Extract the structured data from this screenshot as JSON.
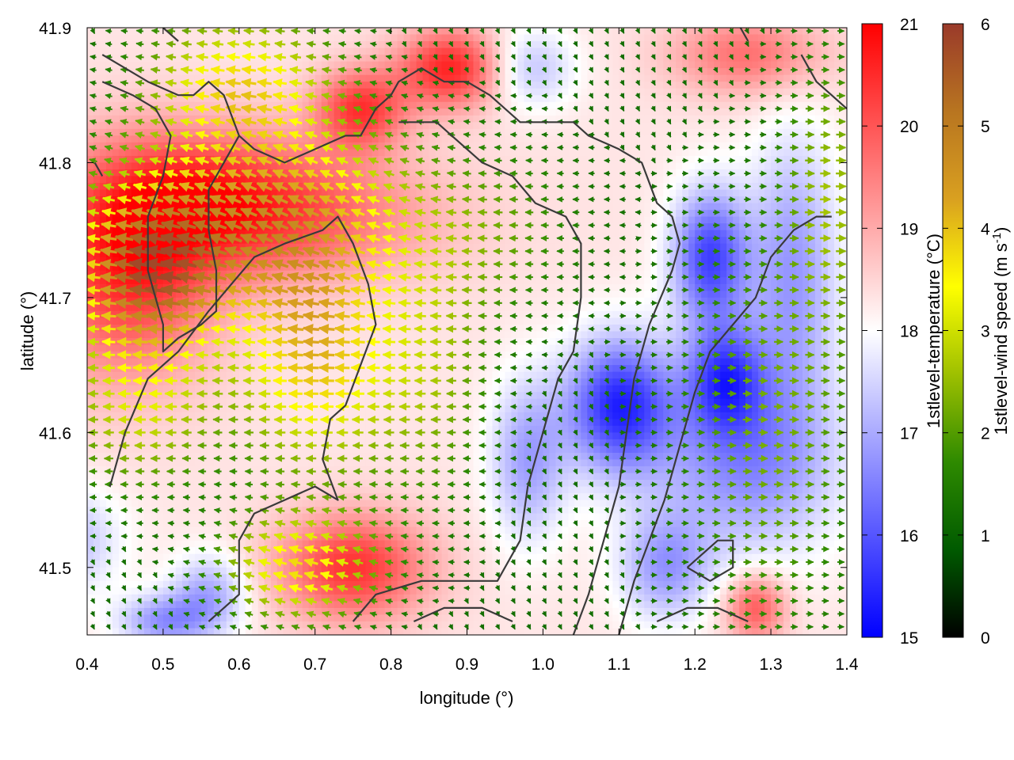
{
  "chart_data": {
    "type": "heatmap",
    "xlabel": "longitude (°)",
    "ylabel": "latitude (°)",
    "xlim": [
      0.4,
      1.4
    ],
    "ylim": [
      41.45,
      41.9
    ],
    "x_ticks": [
      "0.4",
      "0.5",
      "0.6",
      "0.7",
      "0.8",
      "0.9",
      "1.0",
      "1.1",
      "1.2",
      "1.3",
      "1.4"
    ],
    "y_ticks": [
      "41.5",
      "41.6",
      "41.7",
      "41.8",
      "41.9"
    ],
    "grid": false,
    "colorbars": [
      {
        "label": "1stlevel-temperature (°C)",
        "range": [
          15,
          21
        ],
        "ticks": [
          "15",
          "16",
          "17",
          "18",
          "19",
          "20",
          "21"
        ],
        "colors": [
          "#0000ff",
          "#ffffff",
          "#ff0000"
        ]
      },
      {
        "label_main": "1stlevel-wind speed (m s",
        "label_sup": "-1",
        "label_end": ")",
        "range": [
          0,
          6
        ],
        "ticks": [
          "0",
          "1",
          "2",
          "3",
          "4",
          "5",
          "6"
        ],
        "colors": [
          "#000000",
          "#005a00",
          "#2e8a00",
          "#9ec000",
          "#ffff00",
          "#d9a020",
          "#b87520",
          "#9a3a2a"
        ]
      }
    ],
    "temperature_field": {
      "description_values": "approximate °C blobs over domain",
      "background": 18.3,
      "blobs": [
        {
          "lon": 0.45,
          "lat": 41.72,
          "rlon": 0.12,
          "rlat": 0.08,
          "value": 20.4
        },
        {
          "lon": 0.55,
          "lat": 41.78,
          "rlon": 0.15,
          "rlat": 0.05,
          "value": 19.6
        },
        {
          "lon": 0.66,
          "lat": 41.76,
          "rlon": 0.2,
          "rlat": 0.05,
          "value": 19.8
        },
        {
          "lon": 0.88,
          "lat": 41.87,
          "rlon": 0.07,
          "rlat": 0.03,
          "value": 20.6
        },
        {
          "lon": 0.76,
          "lat": 41.84,
          "rlon": 0.06,
          "rlat": 0.03,
          "value": 20.3
        },
        {
          "lon": 0.75,
          "lat": 41.5,
          "rlon": 0.1,
          "rlat": 0.04,
          "value": 20.4
        },
        {
          "lon": 1.27,
          "lat": 41.88,
          "rlon": 0.1,
          "rlat": 0.03,
          "value": 19.7
        },
        {
          "lon": 1.28,
          "lat": 41.47,
          "rlon": 0.04,
          "rlat": 0.025,
          "value": 20.0
        },
        {
          "lon": 1.1,
          "lat": 41.62,
          "rlon": 0.07,
          "rlat": 0.05,
          "value": 15.5
        },
        {
          "lon": 1.22,
          "lat": 41.73,
          "rlon": 0.05,
          "rlat": 0.05,
          "value": 15.8
        },
        {
          "lon": 1.24,
          "lat": 41.64,
          "rlon": 0.05,
          "rlat": 0.04,
          "value": 16.2
        },
        {
          "lon": 1.27,
          "lat": 41.58,
          "rlon": 0.12,
          "rlat": 0.07,
          "value": 16.6
        },
        {
          "lon": 1.33,
          "lat": 41.72,
          "rlon": 0.06,
          "rlat": 0.1,
          "value": 16.8
        },
        {
          "lon": 0.98,
          "lat": 41.58,
          "rlon": 0.05,
          "rlat": 0.06,
          "value": 16.9
        },
        {
          "lon": 1.16,
          "lat": 41.5,
          "rlon": 0.06,
          "rlat": 0.04,
          "value": 16.9
        },
        {
          "lon": 0.56,
          "lat": 41.48,
          "rlon": 0.05,
          "rlat": 0.03,
          "value": 17.0
        },
        {
          "lon": 0.5,
          "lat": 41.46,
          "rlon": 0.06,
          "rlat": 0.02,
          "value": 16.8
        },
        {
          "lon": 0.98,
          "lat": 41.87,
          "rlon": 0.06,
          "rlat": 0.03,
          "value": 17.2
        },
        {
          "lon": 0.36,
          "lat": 41.52,
          "rlon": 0.08,
          "rlat": 0.04,
          "value": 17.1
        }
      ]
    },
    "wind_field": {
      "description_values": "approximate speed m/s and direction blobs",
      "blobs": [
        {
          "lon": 0.48,
          "lat": 41.72,
          "rlon": 0.1,
          "rlat": 0.06,
          "speed": 5.3,
          "u": -1,
          "v": 0.05
        },
        {
          "lon": 0.65,
          "lat": 41.76,
          "rlon": 0.18,
          "rlat": 0.07,
          "speed": 4.6,
          "u": -1,
          "v": 0.5
        },
        {
          "lon": 0.6,
          "lat": 41.86,
          "rlon": 0.12,
          "rlat": 0.05,
          "speed": 3.8,
          "u": -1,
          "v": 0.1
        },
        {
          "lon": 0.7,
          "lat": 41.65,
          "rlon": 0.1,
          "rlat": 0.08,
          "speed": 4.1,
          "u": -1,
          "v": 0.0
        },
        {
          "lon": 0.68,
          "lat": 41.5,
          "rlon": 0.1,
          "rlat": 0.04,
          "speed": 4.0,
          "u": -1,
          "v": 0.3
        },
        {
          "lon": 0.47,
          "lat": 41.62,
          "rlon": 0.1,
          "rlat": 0.06,
          "speed": 3.2,
          "u": -1,
          "v": 0.0
        },
        {
          "lon": 0.85,
          "lat": 41.65,
          "rlon": 0.08,
          "rlat": 0.1,
          "speed": 2.6,
          "u": -1,
          "v": 0.0
        },
        {
          "lon": 0.95,
          "lat": 41.75,
          "rlon": 0.1,
          "rlat": 0.06,
          "speed": 2.0,
          "u": -1,
          "v": 0.0
        },
        {
          "lon": 1.3,
          "lat": 41.6,
          "rlon": 0.12,
          "rlat": 0.15,
          "speed": 2.4,
          "u": 1,
          "v": 0.0
        },
        {
          "lon": 1.38,
          "lat": 41.78,
          "rlon": 0.06,
          "rlat": 0.1,
          "speed": 2.6,
          "u": 1,
          "v": 0.0
        }
      ],
      "background_speed": 1.2
    },
    "contours": [
      [
        [
          0.42,
          41.88
        ],
        [
          0.45,
          41.87
        ],
        [
          0.48,
          41.86
        ],
        [
          0.52,
          41.85
        ],
        [
          0.54,
          41.85
        ],
        [
          0.56,
          41.86
        ],
        [
          0.58,
          41.85
        ],
        [
          0.6,
          41.82
        ],
        [
          0.62,
          41.81
        ],
        [
          0.66,
          41.8
        ],
        [
          0.7,
          41.81
        ],
        [
          0.74,
          41.82
        ],
        [
          0.76,
          41.82
        ],
        [
          0.78,
          41.84
        ],
        [
          0.8,
          41.85
        ],
        [
          0.81,
          41.86
        ],
        [
          0.84,
          41.87
        ],
        [
          0.87,
          41.86
        ],
        [
          0.9,
          41.86
        ],
        [
          0.93,
          41.85
        ],
        [
          0.97,
          41.83
        ],
        [
          1.0,
          41.83
        ],
        [
          1.04,
          41.83
        ],
        [
          1.06,
          41.82
        ],
        [
          1.1,
          41.81
        ],
        [
          1.13,
          41.8
        ],
        [
          1.15,
          41.77
        ],
        [
          1.17,
          41.76
        ],
        [
          1.18,
          41.74
        ],
        [
          1.17,
          41.72
        ],
        [
          1.14,
          41.68
        ],
        [
          1.12,
          41.64
        ],
        [
          1.11,
          41.6
        ],
        [
          1.1,
          41.56
        ],
        [
          1.08,
          41.52
        ],
        [
          1.06,
          41.48
        ],
        [
          1.04,
          41.45
        ]
      ],
      [
        [
          0.6,
          41.82
        ],
        [
          0.58,
          41.8
        ],
        [
          0.56,
          41.78
        ],
        [
          0.56,
          41.75
        ],
        [
          0.57,
          41.72
        ],
        [
          0.57,
          41.69
        ],
        [
          0.55,
          41.68
        ],
        [
          0.52,
          41.67
        ],
        [
          0.5,
          41.66
        ],
        [
          0.5,
          41.68
        ],
        [
          0.49,
          41.7
        ],
        [
          0.48,
          41.72
        ],
        [
          0.48,
          41.76
        ],
        [
          0.5,
          41.79
        ],
        [
          0.51,
          41.82
        ],
        [
          0.49,
          41.84
        ],
        [
          0.46,
          41.85
        ],
        [
          0.42,
          41.86
        ]
      ],
      [
        [
          0.41,
          41.8
        ],
        [
          0.42,
          41.79
        ]
      ],
      [
        [
          0.43,
          41.56
        ],
        [
          0.45,
          41.6
        ],
        [
          0.48,
          41.64
        ],
        [
          0.52,
          41.66
        ],
        [
          0.56,
          41.69
        ],
        [
          0.59,
          41.71
        ],
        [
          0.62,
          41.73
        ],
        [
          0.66,
          41.74
        ],
        [
          0.71,
          41.75
        ],
        [
          0.73,
          41.76
        ],
        [
          0.75,
          41.74
        ],
        [
          0.77,
          41.71
        ],
        [
          0.78,
          41.68
        ],
        [
          0.76,
          41.65
        ],
        [
          0.74,
          41.62
        ],
        [
          0.72,
          41.61
        ],
        [
          0.71,
          41.58
        ],
        [
          0.73,
          41.55
        ],
        [
          0.7,
          41.56
        ],
        [
          0.66,
          41.55
        ],
        [
          0.62,
          41.54
        ],
        [
          0.6,
          41.52
        ],
        [
          0.6,
          41.5
        ],
        [
          0.6,
          41.48
        ],
        [
          0.58,
          41.47
        ],
        [
          0.56,
          41.46
        ]
      ],
      [
        [
          0.75,
          41.46
        ],
        [
          0.78,
          41.48
        ],
        [
          0.84,
          41.49
        ],
        [
          0.9,
          41.49
        ],
        [
          0.94,
          41.49
        ],
        [
          0.97,
          41.52
        ],
        [
          0.98,
          41.56
        ],
        [
          1.0,
          41.6
        ],
        [
          1.02,
          41.64
        ],
        [
          1.04,
          41.66
        ],
        [
          1.05,
          41.7
        ],
        [
          1.05,
          41.74
        ],
        [
          1.03,
          41.76
        ],
        [
          0.99,
          41.77
        ],
        [
          0.96,
          41.79
        ],
        [
          0.92,
          41.8
        ],
        [
          0.88,
          41.82
        ],
        [
          0.86,
          41.83
        ],
        [
          0.83,
          41.83
        ],
        [
          0.81,
          41.83
        ]
      ],
      [
        [
          1.1,
          41.45
        ],
        [
          1.12,
          41.49
        ],
        [
          1.14,
          41.52
        ],
        [
          1.16,
          41.55
        ],
        [
          1.18,
          41.59
        ],
        [
          1.2,
          41.63
        ],
        [
          1.22,
          41.66
        ],
        [
          1.25,
          41.68
        ],
        [
          1.28,
          41.7
        ],
        [
          1.3,
          41.73
        ],
        [
          1.33,
          41.75
        ],
        [
          1.36,
          41.76
        ],
        [
          1.38,
          41.76
        ]
      ],
      [
        [
          1.19,
          41.5
        ],
        [
          1.21,
          41.51
        ],
        [
          1.23,
          41.52
        ],
        [
          1.25,
          41.52
        ],
        [
          1.25,
          41.5
        ],
        [
          1.22,
          41.49
        ],
        [
          1.19,
          41.5
        ]
      ],
      [
        [
          1.34,
          41.88
        ],
        [
          1.36,
          41.86
        ],
        [
          1.38,
          41.85
        ],
        [
          1.4,
          41.84
        ]
      ],
      [
        [
          1.26,
          41.9
        ],
        [
          1.27,
          41.89
        ]
      ],
      [
        [
          0.5,
          41.9
        ],
        [
          0.52,
          41.89
        ]
      ],
      [
        [
          0.83,
          41.46
        ],
        [
          0.87,
          41.47
        ],
        [
          0.92,
          41.47
        ],
        [
          0.96,
          41.46
        ]
      ],
      [
        [
          1.15,
          41.46
        ],
        [
          1.19,
          41.47
        ],
        [
          1.23,
          41.47
        ],
        [
          1.27,
          41.46
        ]
      ]
    ]
  }
}
